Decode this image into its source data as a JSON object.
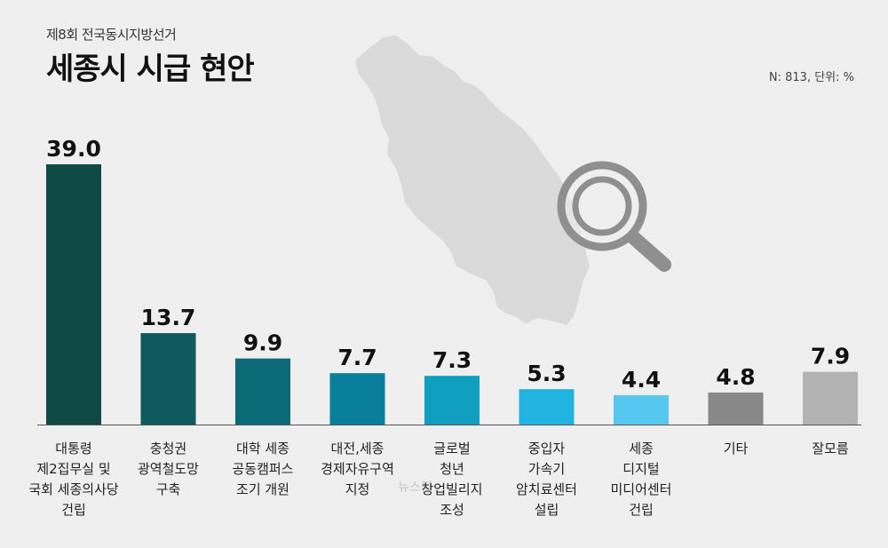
{
  "header": {
    "subtitle": "제8회 전국동시지방선거",
    "title": "세종시 시급 현안",
    "note": "N: 813, 단위: %"
  },
  "icons": [
    "sejong-map-icon",
    "magnifier-icon"
  ],
  "chart_data": {
    "type": "bar",
    "categories": [
      [
        "대통령",
        "제2집무실 및",
        "국회 세종의사당",
        "건립"
      ],
      [
        "충청권",
        "광역철도망",
        "구축"
      ],
      [
        "대학 세종",
        "공동캠퍼스",
        "조기 개원"
      ],
      [
        "대전,세종",
        "경제자유구역",
        "지정"
      ],
      [
        "글로벌",
        "청년",
        "창업빌리지",
        "조성"
      ],
      [
        "중입자",
        "가속기",
        "암치료센터",
        "설립"
      ],
      [
        "세종",
        "디지털",
        "미디어센터",
        "건립"
      ],
      [
        "기타"
      ],
      [
        "잘모름"
      ]
    ],
    "values": [
      39.0,
      13.7,
      9.9,
      7.7,
      7.3,
      5.3,
      4.4,
      4.8,
      7.9
    ],
    "labels": [
      "39.0",
      "13.7",
      "9.9",
      "7.7",
      "7.3",
      "5.3",
      "4.4",
      "4.8",
      "7.9"
    ],
    "colors": [
      "#0f4a47",
      "#0e5a5e",
      "#0d6a77",
      "#0a7f9c",
      "#119fbf",
      "#22b4e0",
      "#56c8ef",
      "#888888",
      "#b3b3b3"
    ],
    "xlabel": "",
    "ylabel": "",
    "ylim": [
      0,
      40
    ],
    "grid": false,
    "legend": "none"
  }
}
